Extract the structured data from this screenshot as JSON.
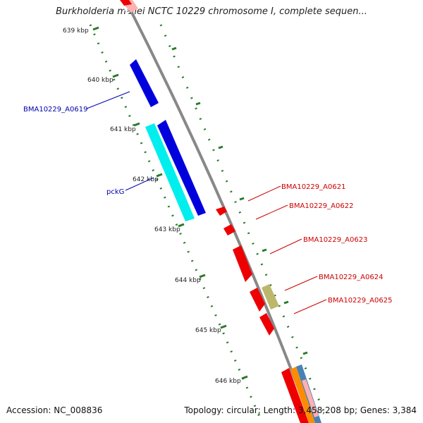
{
  "title": "Burkholderia mallei NCTC 10229 chromosome I, complete sequen...",
  "footer": {
    "accession": "Accession: NC_008836",
    "topology": "Topology: circular",
    "length": "Length: 3,458,208 bp",
    "genes": "Genes: 3,384",
    "separator": "; "
  },
  "ticks": [
    "639 kbp",
    "640 kbp",
    "641 kbp",
    "642 kbp",
    "643 kbp",
    "644 kbp",
    "645 kbp",
    "646 kbp"
  ],
  "gene_labels": {
    "left": [
      {
        "text": "BMA10229_A0619",
        "color": "#0000aa"
      },
      {
        "text": "pckG",
        "color": "#0000aa"
      }
    ],
    "right": [
      {
        "text": "BMA10229_A0621",
        "color": "#cc0000"
      },
      {
        "text": "BMA10229_A0622",
        "color": "#cc0000"
      },
      {
        "text": "BMA10229_A0623",
        "color": "#cc0000"
      },
      {
        "text": "BMA10229_A0624",
        "color": "#cc0000"
      },
      {
        "text": "BMA10229_A0625",
        "color": "#cc0000"
      }
    ]
  },
  "colors": {
    "backbone": "#888888",
    "tick_dots": "#2a7a2a",
    "forward_gene": "#0000dd",
    "highlight_gene": "#00eeee",
    "reverse_gene": "#ee0000",
    "misc_gene": "#bdb76b",
    "faint_gene": "#ffb0b0",
    "orange_gene": "#ff8c00",
    "steel_gene": "#4682b4"
  }
}
